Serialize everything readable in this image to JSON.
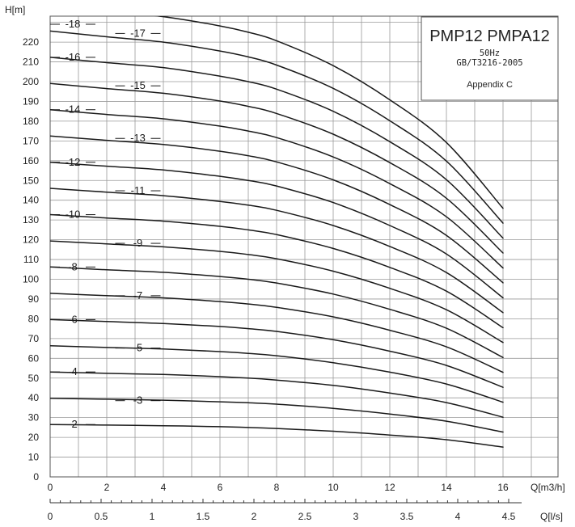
{
  "chart_data": {
    "type": "line",
    "title": "PMP12 PMPA12",
    "info": {
      "frequency": "50Hz",
      "standard": "GB/T3216-2005",
      "note": "Appendix C"
    },
    "ylabel": "H[m]",
    "xlabel": "Q[m3/h]",
    "x2label": "Q[l/s]",
    "ylim": [
      0,
      230
    ],
    "xlim": [
      0,
      18
    ],
    "x2lim": [
      0,
      5
    ],
    "grid": true,
    "yticks": [
      0,
      10,
      20,
      30,
      40,
      50,
      60,
      70,
      80,
      90,
      100,
      110,
      120,
      130,
      140,
      150,
      160,
      170,
      180,
      190,
      200,
      210,
      220
    ],
    "xticks": [
      0,
      2,
      4,
      6,
      8,
      10,
      12,
      14,
      16
    ],
    "x2ticks": [
      "0",
      "0.5",
      "1",
      "1.5",
      "2",
      "2.5",
      "3",
      "3.5",
      "4",
      "4.5"
    ],
    "x": [
      0,
      2,
      4,
      6,
      7,
      8,
      10,
      12,
      14,
      16
    ],
    "series": [
      {
        "name": "-2",
        "values": [
          26.5,
          26.2,
          25.9,
          25.4,
          25.0,
          24.5,
          23.1,
          21.2,
          18.8,
          15.1
        ]
      },
      {
        "name": "-3",
        "values": [
          39.8,
          39.3,
          38.8,
          38.0,
          37.5,
          36.8,
          34.7,
          31.8,
          28.2,
          22.7
        ]
      },
      {
        "name": "-4",
        "values": [
          53.1,
          52.4,
          51.8,
          50.7,
          50.0,
          49.0,
          46.3,
          42.4,
          37.6,
          30.2
        ]
      },
      {
        "name": "-5",
        "values": [
          66.4,
          65.5,
          64.7,
          63.4,
          62.5,
          61.3,
          57.8,
          53.0,
          47.0,
          37.8
        ]
      },
      {
        "name": "-6",
        "values": [
          79.6,
          78.6,
          77.6,
          76.1,
          75.0,
          73.6,
          69.4,
          63.6,
          56.4,
          45.3
        ]
      },
      {
        "name": "-7",
        "values": [
          92.9,
          91.7,
          90.6,
          88.7,
          87.5,
          85.8,
          81.0,
          74.2,
          65.8,
          52.9
        ]
      },
      {
        "name": "-8",
        "values": [
          106.2,
          104.8,
          103.5,
          101.4,
          100.0,
          98.1,
          92.5,
          84.8,
          75.2,
          60.4
        ]
      },
      {
        "name": "-9",
        "values": [
          119.4,
          117.9,
          116.4,
          114.1,
          112.5,
          110.4,
          104.1,
          95.4,
          84.6,
          68.0
        ]
      },
      {
        "name": "-10",
        "values": [
          132.7,
          131.0,
          129.4,
          126.8,
          125.0,
          122.6,
          115.6,
          106.0,
          94.0,
          75.5
        ]
      },
      {
        "name": "-11",
        "values": [
          146.0,
          144.1,
          142.3,
          139.4,
          137.5,
          134.9,
          127.2,
          116.6,
          103.4,
          83.1
        ]
      },
      {
        "name": "-12",
        "values": [
          159.2,
          157.2,
          155.3,
          152.1,
          150.0,
          147.2,
          138.8,
          127.2,
          112.8,
          90.6
        ]
      },
      {
        "name": "-13",
        "values": [
          172.5,
          170.3,
          168.2,
          164.8,
          162.5,
          159.4,
          150.3,
          137.8,
          122.2,
          98.2
        ]
      },
      {
        "name": "-14",
        "values": [
          185.8,
          183.4,
          181.2,
          177.5,
          175.0,
          171.7,
          161.9,
          148.4,
          131.6,
          105.7
        ]
      },
      {
        "name": "-15",
        "values": [
          199.1,
          196.5,
          194.1,
          190.2,
          187.5,
          183.9,
          173.4,
          159.0,
          141.0,
          113.3
        ]
      },
      {
        "name": "-16",
        "values": [
          212.3,
          209.6,
          207.1,
          202.8,
          200.0,
          196.2,
          185.0,
          169.6,
          150.4,
          120.8
        ]
      },
      {
        "name": "-17",
        "values": [
          225.6,
          222.7,
          220.0,
          215.5,
          212.5,
          208.4,
          196.6,
          180.2,
          159.8,
          128.4
        ]
      },
      {
        "name": "-18",
        "values": [
          238.9,
          235.8,
          232.9,
          228.2,
          225.0,
          220.7,
          208.1,
          190.8,
          169.2,
          135.9
        ]
      }
    ]
  }
}
